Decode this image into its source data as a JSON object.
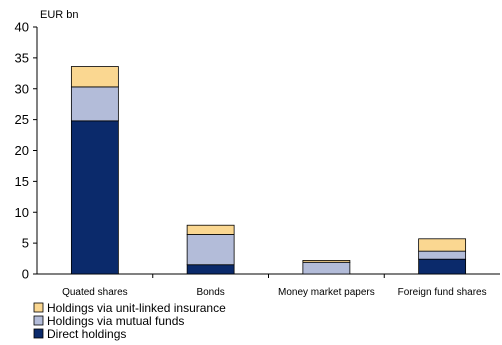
{
  "chart_data": {
    "type": "bar",
    "stacked": true,
    "unit_label": "EUR bn",
    "categories": [
      "Quated shares",
      "Bonds",
      "Money market papers",
      "Foreign fund shares"
    ],
    "series": [
      {
        "name": "Direct holdings",
        "color": "#0b2a6b",
        "values": [
          24.8,
          1.5,
          0.0,
          2.4
        ]
      },
      {
        "name": "Holdings via mutual funds",
        "color": "#b3bcd9",
        "values": [
          5.5,
          4.9,
          1.9,
          1.3
        ]
      },
      {
        "name": "Holdings via unit-linked insurance",
        "color": "#fad791",
        "values": [
          3.3,
          1.5,
          0.3,
          2.0
        ]
      }
    ],
    "ylim": [
      0,
      40
    ],
    "yticks": [
      0,
      5,
      10,
      15,
      20,
      25,
      30,
      35,
      40
    ],
    "grid": false,
    "legend_position": "bottom-left",
    "legend_order": [
      "Holdings via unit-linked insurance",
      "Holdings via mutual funds",
      "Direct holdings"
    ]
  }
}
